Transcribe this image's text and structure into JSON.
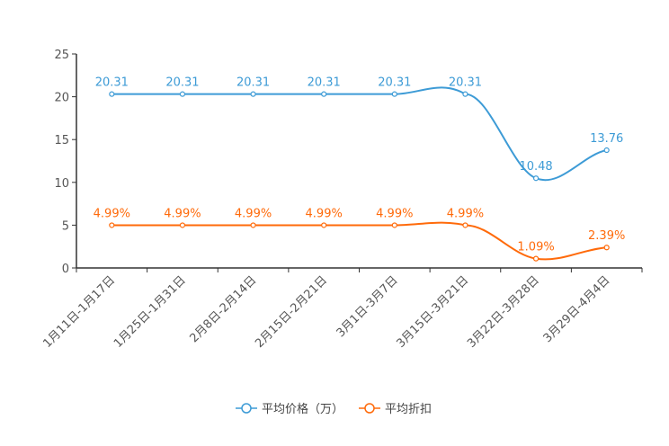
{
  "chart_data": {
    "type": "line",
    "title": "",
    "xlabel": "",
    "ylabel": "",
    "ylim": [
      0,
      25
    ],
    "yticks": [
      0,
      5,
      10,
      15,
      20,
      25
    ],
    "grid": false,
    "legend_position": "bottom",
    "categories": [
      "1月11日-1月17日",
      "1月25日-1月31日",
      "2月8日-2月14日",
      "2月15日-2月21日",
      "3月1日-3月7日",
      "3月15日-3月21日",
      "3月22日-3月28日",
      "3月29日-4月4日"
    ],
    "series": [
      {
        "name": "平均价格（万）",
        "color": "#3d9bd6",
        "values": [
          20.31,
          20.31,
          20.31,
          20.31,
          20.31,
          20.31,
          10.48,
          13.76
        ],
        "labels": [
          "20.31",
          "20.31",
          "20.31",
          "20.31",
          "20.31",
          "20.31",
          "10.48",
          "13.76"
        ]
      },
      {
        "name": "平均折扣",
        "color": "#ff6a0a",
        "values": [
          4.99,
          4.99,
          4.99,
          4.99,
          4.99,
          4.99,
          1.09,
          2.39
        ],
        "labels": [
          "4.99%",
          "4.99%",
          "4.99%",
          "4.99%",
          "4.99%",
          "4.99%",
          "1.09%",
          "2.39%"
        ]
      }
    ]
  }
}
